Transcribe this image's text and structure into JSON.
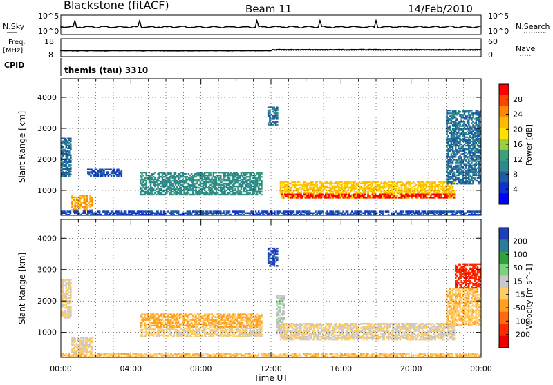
{
  "header": {
    "title": "Blackstone (fitACF)",
    "beam": "Beam 11",
    "date": "14/Feb/2010"
  },
  "strips": {
    "nsky_label": "N.Sky",
    "nsearch_label": "N.Search",
    "nsky_ticks": [
      "10^5",
      "10^0"
    ],
    "nsky_right_ticks": [
      "10^5",
      "10^0"
    ],
    "freq_label": "Freq.",
    "freq_unit": "[MHz]",
    "freq_ticks": [
      "18",
      "8"
    ],
    "nave_label": "Nave",
    "nave_ticks": [
      "60",
      "0"
    ],
    "cpid_label": "CPID",
    "cpid_value": "themis (tau) 3310"
  },
  "panels": {
    "ylabel": "Slant Range [km]",
    "xlabel": "Time UT",
    "yticks": [
      "4000",
      "3000",
      "2000",
      "1000"
    ],
    "xticks": [
      "00:00",
      "04:00",
      "08:00",
      "12:00",
      "16:00",
      "20:00",
      "00:00"
    ]
  },
  "power_colorbar": {
    "label": "Power [dB]",
    "ticks": [
      "28",
      "24",
      "20",
      "16",
      "12",
      "8",
      "4"
    ],
    "colors": [
      "#ff0000",
      "#ff4400",
      "#ff8800",
      "#ffbb00",
      "#ffe000",
      "#9ccf3e",
      "#3ea07a",
      "#2e8a8a",
      "#205aa0",
      "#1030d0",
      "#0000ff"
    ]
  },
  "velocity_colorbar": {
    "label": "Velocity [m s^-1]",
    "ticks": [
      "200",
      "100",
      "50",
      "15",
      "-15",
      "-50",
      "-100",
      "-200"
    ],
    "colors": [
      "#1f3fb8",
      "#2e7a9a",
      "#33a040",
      "#7fd07f",
      "#c8c8c8",
      "#ffcc66",
      "#ffa020",
      "#ff6a10",
      "#ff2a00",
      "#ee0000"
    ]
  },
  "chart_data": {
    "type": "heatmap",
    "title": "Blackstone (fitACF)",
    "xlabel": "Time UT",
    "ylabel": "Slant Range [km]",
    "x_range_hours": [
      0,
      24
    ],
    "ylim_km": [
      200,
      4600
    ],
    "grid": true,
    "panels": [
      {
        "name": "Power",
        "unit": "dB",
        "scale": [
          0,
          30
        ],
        "regions": [
          {
            "t": [
              0.0,
              0.6
            ],
            "r": [
              1450,
              2700
            ],
            "value": 8
          },
          {
            "t": [
              0.6,
              1.8
            ],
            "r": [
              350,
              850
            ],
            "value": 22
          },
          {
            "t": [
              1.5,
              3.5
            ],
            "r": [
              1450,
              1700
            ],
            "value": 6
          },
          {
            "t": [
              4.5,
              11.5
            ],
            "r": [
              850,
              1600
            ],
            "value": 10
          },
          {
            "t": [
              11.8,
              12.4
            ],
            "r": [
              3100,
              3700
            ],
            "value": 8
          },
          {
            "t": [
              12.5,
              22.5
            ],
            "r": [
              750,
              1300
            ],
            "value": 20
          },
          {
            "t": [
              12.5,
              22.5
            ],
            "r": [
              750,
              900
            ],
            "value": 28
          },
          {
            "t": [
              22.0,
              24.0
            ],
            "r": [
              1200,
              3600
            ],
            "value": 8
          },
          {
            "t": [
              0.0,
              24.0
            ],
            "r": [
              200,
              350
            ],
            "value": 6
          }
        ]
      },
      {
        "name": "Velocity",
        "unit": "m s^-1",
        "scale": [
          -250,
          250
        ],
        "regions": [
          {
            "t": [
              0.0,
              0.6
            ],
            "r": [
              1450,
              2700
            ],
            "value": 0
          },
          {
            "t": [
              0.6,
              1.8
            ],
            "r": [
              350,
              850
            ],
            "value": 0
          },
          {
            "t": [
              4.5,
              11.5
            ],
            "r": [
              1150,
              1600
            ],
            "value": -60
          },
          {
            "t": [
              4.5,
              11.5
            ],
            "r": [
              850,
              1150
            ],
            "value": -10
          },
          {
            "t": [
              11.8,
              12.4
            ],
            "r": [
              3100,
              3700
            ],
            "value": 220
          },
          {
            "t": [
              12.3,
              12.8
            ],
            "r": [
              950,
              2200
            ],
            "value": 40
          },
          {
            "t": [
              12.5,
              22.5
            ],
            "r": [
              750,
              1300
            ],
            "value": 0
          },
          {
            "t": [
              22.5,
              24.0
            ],
            "r": [
              2400,
              3200
            ],
            "value": -180
          },
          {
            "t": [
              22.0,
              24.0
            ],
            "r": [
              1200,
              2400
            ],
            "value": -40
          },
          {
            "t": [
              0.0,
              24.0
            ],
            "r": [
              200,
              350
            ],
            "value": -40
          }
        ]
      }
    ]
  }
}
